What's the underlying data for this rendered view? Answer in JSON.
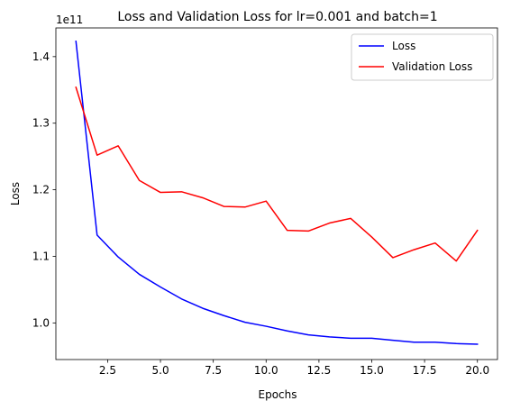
{
  "chart_data": {
    "type": "line",
    "title": "Loss and Validation Loss for lr=0.001 and batch=1",
    "xlabel": "Epochs",
    "ylabel": "Loss",
    "y_offset_label": "1e11",
    "x": [
      1,
      2,
      3,
      4,
      5,
      6,
      7,
      8,
      9,
      10,
      11,
      12,
      13,
      14,
      15,
      16,
      17,
      18,
      19,
      20
    ],
    "xlim": [
      0.05,
      20.95
    ],
    "ylim": [
      0.945,
      1.4431
    ],
    "xticks": [
      2.5,
      5.0,
      7.5,
      10.0,
      12.5,
      15.0,
      17.5,
      20.0
    ],
    "xtick_labels": [
      "2.5",
      "5.0",
      "7.5",
      "10.0",
      "12.5",
      "15.0",
      "17.5",
      "20.0"
    ],
    "yticks": [
      1.0,
      1.1,
      1.2,
      1.3,
      1.4
    ],
    "ytick_labels": [
      "1.0",
      "1.1",
      "1.2",
      "1.3",
      "1.4"
    ],
    "grid": false,
    "legend_position": "top-right",
    "series": [
      {
        "name": "Loss",
        "color": "#0000ff",
        "values": [
          1.423,
          1.132,
          1.099,
          1.073,
          1.054,
          1.036,
          1.022,
          1.011,
          1.001,
          0.995,
          0.988,
          0.982,
          0.979,
          0.977,
          0.977,
          0.974,
          0.971,
          0.971,
          0.969,
          0.968
        ]
      },
      {
        "name": "Validation Loss",
        "color": "#ff0000",
        "values": [
          1.354,
          1.252,
          1.266,
          1.214,
          1.196,
          1.197,
          1.188,
          1.175,
          1.174,
          1.183,
          1.139,
          1.138,
          1.15,
          1.157,
          1.129,
          1.098,
          1.11,
          1.12,
          1.093,
          1.139
        ]
      }
    ]
  }
}
